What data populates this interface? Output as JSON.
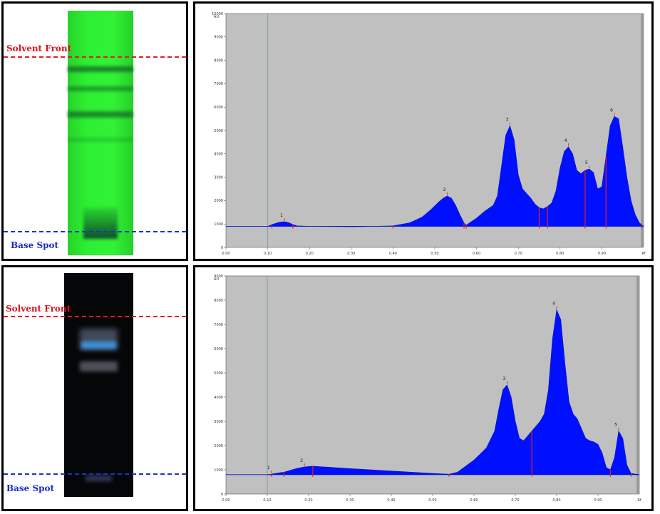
{
  "top": {
    "plate": {
      "solvent_front_label": "Solvent Front",
      "base_spot_label": "Base Spot",
      "background_color": "#2ef032"
    },
    "chart": {
      "y_unit": "AU",
      "x_unit": "Rf",
      "y_ticks": [
        "10000",
        "9000",
        "8000",
        "7000",
        "6000",
        "5000",
        "4000",
        "3000",
        "2000",
        "1000",
        "0"
      ],
      "x_ticks": [
        "0.00",
        "0.10",
        "0.20",
        "0.30",
        "0.40",
        "0.50",
        "0.60",
        "0.70",
        "0.80",
        "0.90"
      ],
      "peak_labels": [
        "1",
        "2",
        "3",
        "4",
        "5",
        "6"
      ]
    }
  },
  "bottom": {
    "plate": {
      "solvent_front_label": "Solvent Front",
      "base_spot_label": "Base Spot",
      "background_color": "#050607"
    },
    "chart": {
      "y_unit": "AU",
      "x_unit": "Rf",
      "y_ticks": [
        "9000",
        "8000",
        "7000",
        "6000",
        "5000",
        "4000",
        "3000",
        "2000",
        "1000",
        "0"
      ],
      "x_ticks": [
        "0.00",
        "0.10",
        "0.20",
        "0.30",
        "0.40",
        "0.50",
        "0.60",
        "0.70",
        "0.80",
        "0.90"
      ],
      "peak_labels": [
        "1",
        "2",
        "3",
        "4",
        "5"
      ]
    }
  },
  "chart_data": [
    {
      "type": "area",
      "fill_color": "#0010ff",
      "plot_bg": "#c0c0c0",
      "xlim": [
        0.0,
        1.0
      ],
      "ylim": [
        0,
        10000
      ],
      "x": [
        0.0,
        0.1,
        0.11,
        0.12,
        0.13,
        0.14,
        0.15,
        0.16,
        0.17,
        0.2,
        0.3,
        0.4,
        0.44,
        0.47,
        0.49,
        0.51,
        0.52,
        0.53,
        0.54,
        0.55,
        0.56,
        0.57,
        0.575,
        0.6,
        0.62,
        0.64,
        0.65,
        0.66,
        0.67,
        0.68,
        0.69,
        0.7,
        0.71,
        0.72,
        0.73,
        0.74,
        0.75,
        0.76,
        0.77,
        0.78,
        0.79,
        0.8,
        0.81,
        0.82,
        0.83,
        0.84,
        0.85,
        0.86,
        0.87,
        0.88,
        0.89,
        0.9,
        0.91,
        0.92,
        0.93,
        0.94,
        0.95,
        0.96,
        0.97,
        0.98,
        0.99,
        1.0
      ],
      "y": [
        900,
        900,
        980,
        1030,
        1080,
        1100,
        1060,
        980,
        920,
        900,
        880,
        920,
        1050,
        1300,
        1600,
        1950,
        2100,
        2200,
        2100,
        1800,
        1400,
        1050,
        950,
        1250,
        1550,
        1800,
        2200,
        3500,
        4800,
        5200,
        4600,
        3100,
        2500,
        2300,
        2100,
        1850,
        1700,
        1650,
        1750,
        1900,
        2400,
        3400,
        4100,
        4300,
        4000,
        3300,
        3150,
        3300,
        3350,
        3200,
        2500,
        2600,
        3900,
        5200,
        5600,
        5500,
        4300,
        3000,
        2000,
        1400,
        1050,
        900
      ],
      "peaks": [
        {
          "label": "1",
          "x": 0.14
        },
        {
          "label": "2",
          "x": 0.53
        },
        {
          "label": "3",
          "x": 0.68
        },
        {
          "label": "4",
          "x": 0.82
        },
        {
          "label": "5",
          "x": 0.87
        },
        {
          "label": "6",
          "x": 0.93
        }
      ],
      "markers": [
        0.11,
        0.16,
        0.4,
        0.57,
        0.575,
        0.75,
        0.77,
        0.86,
        0.91,
        0.995
      ]
    },
    {
      "type": "area",
      "fill_color": "#0010ff",
      "plot_bg": "#c0c0c0",
      "xlim": [
        0.0,
        1.0
      ],
      "ylim": [
        0,
        9000
      ],
      "x": [
        0.0,
        0.1,
        0.11,
        0.12,
        0.13,
        0.14,
        0.15,
        0.17,
        0.19,
        0.21,
        0.3,
        0.4,
        0.5,
        0.54,
        0.56,
        0.6,
        0.63,
        0.65,
        0.66,
        0.67,
        0.68,
        0.69,
        0.7,
        0.71,
        0.72,
        0.73,
        0.74,
        0.75,
        0.76,
        0.77,
        0.78,
        0.79,
        0.8,
        0.81,
        0.82,
        0.83,
        0.84,
        0.85,
        0.86,
        0.87,
        0.88,
        0.89,
        0.9,
        0.91,
        0.92,
        0.93,
        0.94,
        0.95,
        0.96,
        0.97,
        0.98,
        1.0
      ],
      "y": [
        800,
        800,
        820,
        850,
        880,
        900,
        950,
        1050,
        1120,
        1150,
        1050,
        950,
        850,
        820,
        900,
        1400,
        1900,
        2600,
        3500,
        4300,
        4500,
        4000,
        3000,
        2300,
        2200,
        2400,
        2600,
        2800,
        3000,
        3300,
        4300,
        6400,
        7600,
        7200,
        5400,
        3800,
        3300,
        3100,
        2700,
        2300,
        2200,
        2150,
        2050,
        1700,
        1100,
        1000,
        1500,
        2600,
        2300,
        1200,
        850,
        800
      ],
      "peaks": [
        {
          "label": "1",
          "x": 0.11
        },
        {
          "label": "2",
          "x": 0.19
        },
        {
          "label": "3",
          "x": 0.68
        },
        {
          "label": "4",
          "x": 0.8
        },
        {
          "label": "5",
          "x": 0.95
        }
      ],
      "markers": [
        0.11,
        0.14,
        0.21,
        0.54,
        0.74,
        0.93,
        0.98
      ]
    }
  ]
}
